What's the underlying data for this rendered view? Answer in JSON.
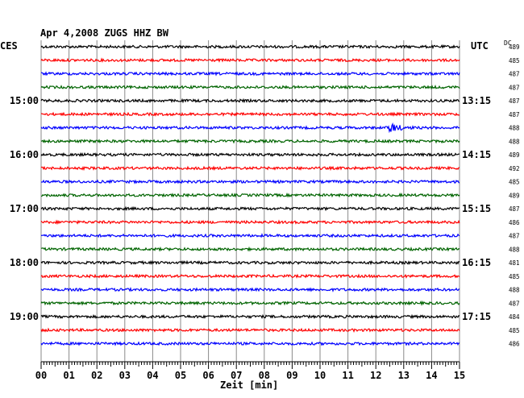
{
  "chart_data": {
    "type": "line",
    "title": "Apr 4,2008   ZUGS HHZ BW",
    "header_left": "CES",
    "header_right": "UTC",
    "header_dc": "DC",
    "xlabel": "Zeit [min]",
    "xlim": [
      0,
      15
    ],
    "x_ticks": [
      "00",
      "01",
      "02",
      "03",
      "04",
      "05",
      "06",
      "07",
      "08",
      "09",
      "10",
      "11",
      "12",
      "13",
      "14",
      "15"
    ],
    "row_colors": [
      "#000000",
      "#ff0000",
      "#0000ff",
      "#006400"
    ],
    "left_labels": [
      {
        "row": 4,
        "text": "15:00"
      },
      {
        "row": 8,
        "text": "16:00"
      },
      {
        "row": 12,
        "text": "17:00"
      },
      {
        "row": 16,
        "text": "18:00"
      },
      {
        "row": 20,
        "text": "19:00"
      }
    ],
    "right_labels": [
      {
        "row": 4,
        "text": "13:15"
      },
      {
        "row": 8,
        "text": "14:15"
      },
      {
        "row": 12,
        "text": "15:15"
      },
      {
        "row": 16,
        "text": "16:15"
      },
      {
        "row": 20,
        "text": "17:15"
      }
    ],
    "dc_values": [
      "489",
      "485",
      "487",
      "487",
      "487",
      "487",
      "488",
      "488",
      "489",
      "492",
      "485",
      "489",
      "487",
      "486",
      "487",
      "488",
      "481",
      "485",
      "488",
      "487",
      "484",
      "485",
      "486"
    ],
    "event": {
      "row": 6,
      "minute": 12.5,
      "label": ""
    }
  }
}
